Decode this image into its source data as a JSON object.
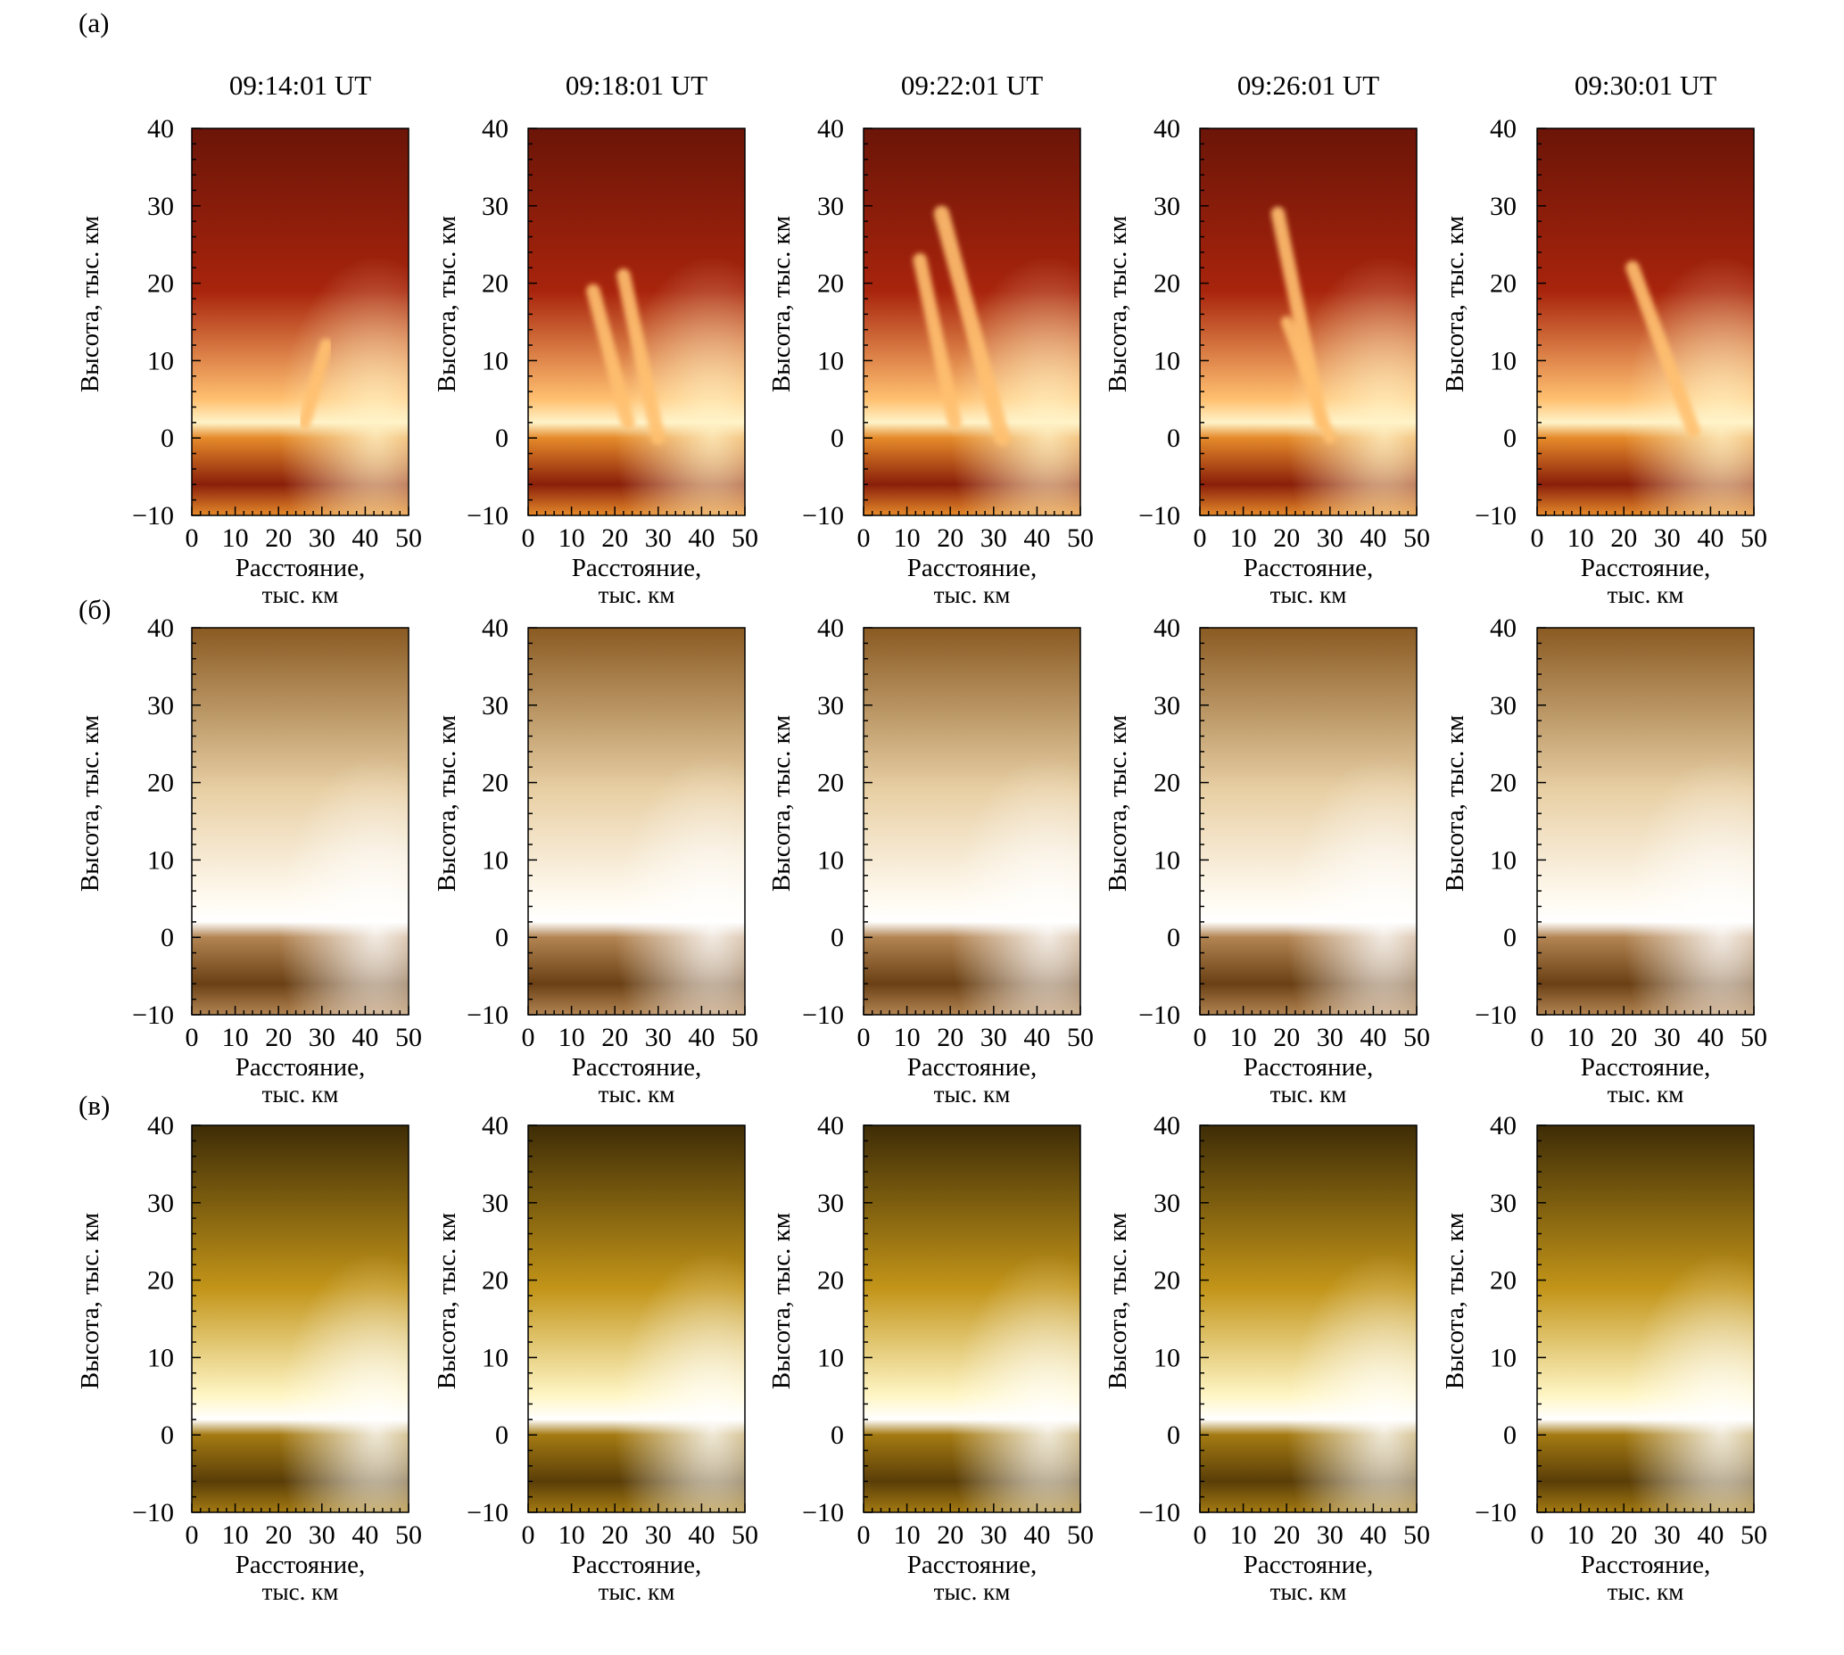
{
  "figure": {
    "row_labels": [
      "(а)",
      "(б)",
      "(в)"
    ],
    "timestamps": [
      "09:14:01 UT",
      "09:18:01 UT",
      "09:22:01 UT",
      "09:26:01 UT",
      "09:30:01 UT"
    ],
    "axes": {
      "ylabel": "Высота, тыс. км",
      "xlabel_line1": "Расстояние,",
      "xlabel_line2": "тыс. км",
      "yticks": [
        "40",
        "30",
        "20",
        "10",
        "0",
        "−10"
      ],
      "xticks": [
        "0",
        "10",
        "20",
        "30",
        "40",
        "50"
      ],
      "xlim": [
        0,
        50
      ],
      "ylim": [
        -10,
        40
      ]
    },
    "rows": [
      {
        "label": "(а)",
        "colormap": "red-orange",
        "colors": {
          "top": "#6b1508",
          "mid": "#a8240c",
          "limb": "#ffc070",
          "bright": "#fff3c8",
          "disk": "#e58a2a",
          "dark": "#8a1f0a"
        },
        "jet_visible": true
      },
      {
        "label": "(б)",
        "colormap": "sepia",
        "colors": {
          "top": "#8a5a22",
          "mid": "#e8cfa4",
          "limb": "#fffaf0",
          "bright": "#ffffff",
          "disk": "#b28452",
          "dark": "#6a4014"
        }
      },
      {
        "label": "(в)",
        "colormap": "gold",
        "colors": {
          "top": "#3e2c06",
          "mid": "#c29418",
          "limb": "#fff6c6",
          "bright": "#ffffff",
          "disk": "#a47a12",
          "dark": "#5a3e08"
        }
      }
    ]
  }
}
